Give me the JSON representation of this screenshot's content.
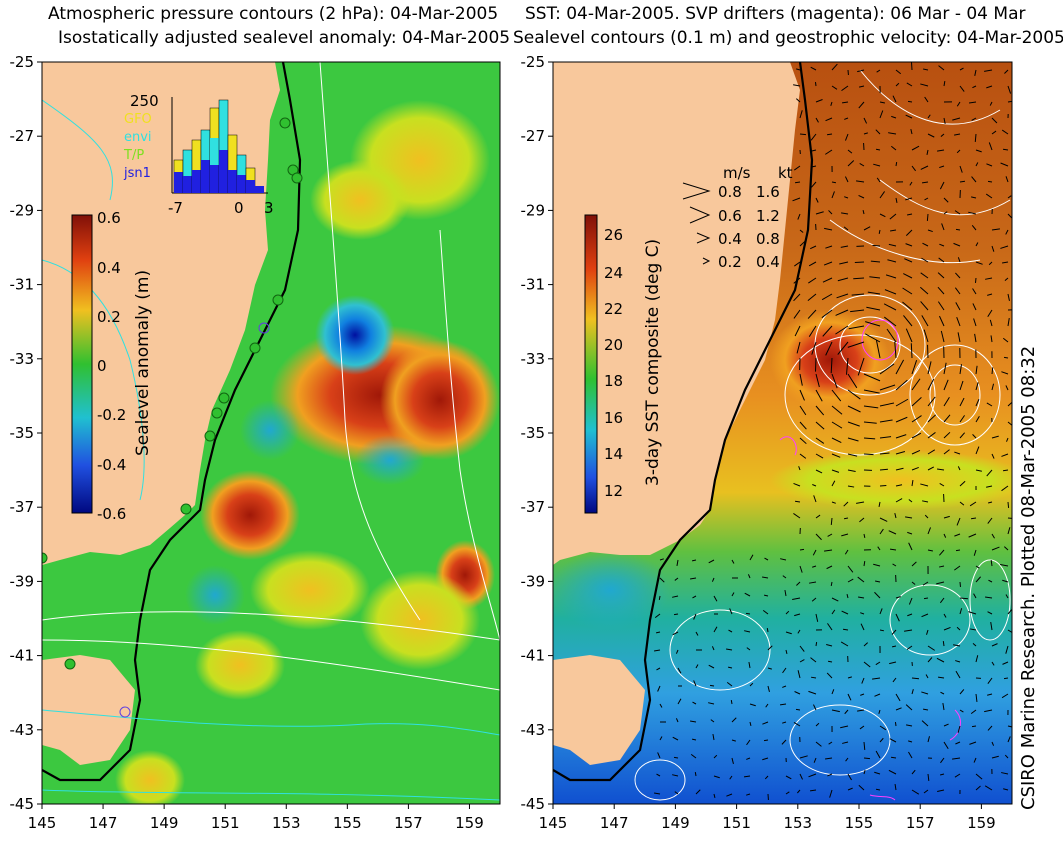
{
  "left": {
    "title1": "Atmospheric pressure contours (2 hPa): 04-Mar-2005",
    "title2": "Isostatically adjusted sealevel anomaly: 04-Mar-2005",
    "yticks": [
      "-25",
      "-27",
      "-29",
      "-31",
      "-33",
      "-35",
      "-37",
      "-39",
      "-41",
      "-43",
      "-45"
    ],
    "xticks": [
      "145",
      "147",
      "149",
      "151",
      "153",
      "155",
      "157",
      "159"
    ],
    "colorbar": {
      "label": "Sealevel anomaly (m)",
      "ticks": [
        "0.6",
        "0.4",
        "0.2",
        "0",
        "-0.2",
        "-0.4",
        "-0.6"
      ]
    },
    "histogram": {
      "ymax_label": "250",
      "legend": [
        {
          "text": "GFO",
          "color": "#f0e020"
        },
        {
          "text": "envi",
          "color": "#30e0e0"
        },
        {
          "text": "T/P",
          "color": "#7ee020"
        },
        {
          "text": "jsn1",
          "color": "#2020e0"
        }
      ],
      "xticks": [
        "-7",
        "0",
        "3"
      ]
    }
  },
  "right": {
    "title1": "SST: 04-Mar-2005. SVP drifters (magenta): 06 Mar - 04 Mar",
    "title2": "Sealevel contours (0.1 m) and geostrophic velocity: 04-Mar-2005.",
    "yticks": [
      "-25",
      "-27",
      "-29",
      "-31",
      "-33",
      "-35",
      "-37",
      "-39",
      "-41",
      "-43",
      "-45"
    ],
    "xticks": [
      "145",
      "147",
      "149",
      "151",
      "153",
      "155",
      "157",
      "159"
    ],
    "colorbar": {
      "label": "3-day SST composite (deg C)",
      "ticks": [
        "26",
        "24",
        "22",
        "20",
        "18",
        "16",
        "14",
        "12"
      ]
    },
    "velocity_legend": {
      "header_ms": "m/s",
      "header_kt": "kt",
      "rows": [
        {
          "ms": "0.8",
          "kt": "1.6"
        },
        {
          "ms": "0.6",
          "kt": "1.2"
        },
        {
          "ms": "0.4",
          "kt": "0.8"
        },
        {
          "ms": "0.2",
          "kt": "0.4"
        }
      ]
    }
  },
  "credit": "CSIRO Marine Research. Plotted 08-Mar-2005 08:32",
  "colors": {
    "land": "#f8c89c",
    "coast": "#000000",
    "anom_pos": "#b02010",
    "anom_zero": "#30c030",
    "anom_neg": "#0010a0",
    "sst_warm": "#c06018",
    "sst_mid": "#f0b020",
    "sst_cool": "#30a0e0"
  }
}
